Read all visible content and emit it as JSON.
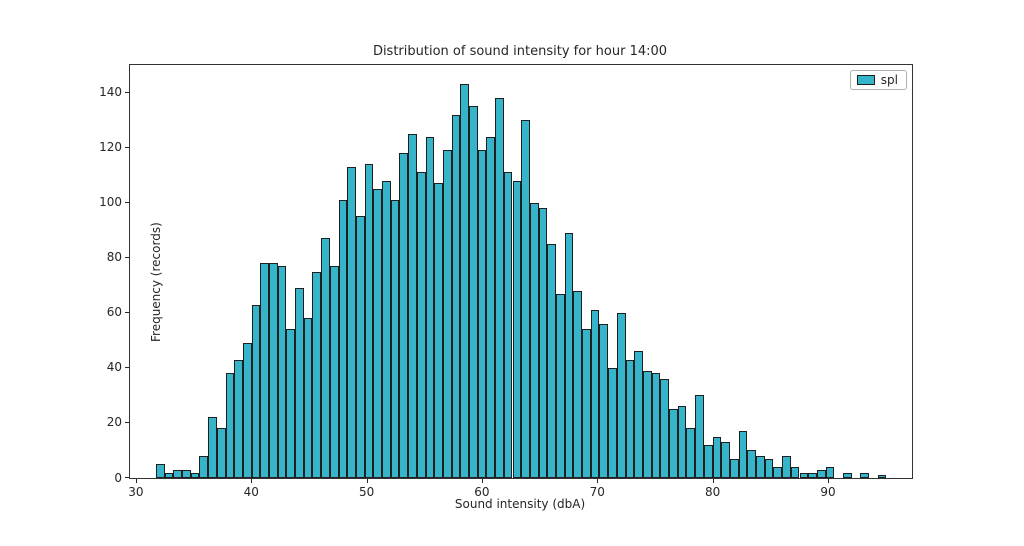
{
  "figure": {
    "title": "Distribution of sound intensity for hour 14:00"
  },
  "chart_data": {
    "type": "bar",
    "subtype": "histogram",
    "title": "Distribution of sound intensity for hour 14:00",
    "xlabel": "Sound intensity (dbA)",
    "ylabel": "Frequency (records)",
    "legend_entries": [
      "spl"
    ],
    "legend_position": "upper right",
    "grid": false,
    "bin_start": 31.65,
    "bin_width": 0.754,
    "values": [
      5,
      2,
      3,
      3,
      2,
      8,
      22,
      18,
      38,
      43,
      49,
      63,
      78,
      78,
      77,
      54,
      69,
      58,
      75,
      87,
      77,
      101,
      113,
      95,
      114,
      105,
      108,
      101,
      118,
      125,
      111,
      124,
      107,
      119,
      132,
      143,
      135,
      119,
      124,
      138,
      111,
      108,
      130,
      100,
      98,
      85,
      67,
      89,
      68,
      54,
      61,
      56,
      40,
      60,
      43,
      46,
      39,
      38,
      36,
      25,
      26,
      18,
      30,
      12,
      15,
      13,
      7,
      17,
      10,
      8,
      7,
      4,
      8,
      4,
      2,
      2,
      3,
      4,
      0,
      2,
      0,
      2,
      0,
      1
    ],
    "xlim": [
      29.4,
      97.2
    ],
    "ylim": [
      0,
      150
    ],
    "x_ticks": [
      30,
      40,
      50,
      60,
      70,
      80,
      90
    ],
    "y_ticks": [
      0,
      20,
      40,
      60,
      80,
      100,
      120,
      140
    ],
    "colors": {
      "bar_fill": "#35b4ca",
      "bar_edge": "#1f1f1f",
      "axis": "#333333",
      "text": "#262626"
    }
  }
}
